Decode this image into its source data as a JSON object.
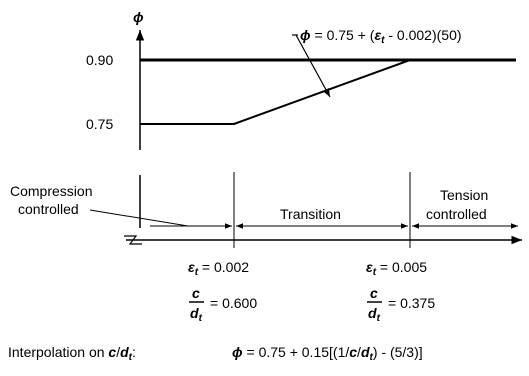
{
  "axis": {
    "phi_symbol": "ϕ"
  },
  "y_ticks": {
    "upper": "0.90",
    "lower": "0.75"
  },
  "equation": {
    "lhs": "ϕ",
    "mid": " = 0.75 + (",
    "eps": "ε",
    "sub": "t",
    "rest": " - 0.002)(50)"
  },
  "zones": {
    "compression_line1": "Compression",
    "compression_line2": "controlled",
    "transition": "Transition",
    "tension_line1": "Tension",
    "tension_line2": "controlled"
  },
  "strain_limits": {
    "left": {
      "eps": "ε",
      "sub": "t",
      "value": " = 0.002",
      "c": "c",
      "d": "d",
      "dsub": "t",
      "ratio": "= 0.600"
    },
    "right": {
      "eps": "ε",
      "sub": "t",
      "value": " = 0.005",
      "c": "c",
      "d": "d",
      "dsub": "t",
      "ratio": "= 0.375"
    }
  },
  "interpolation": {
    "label_prefix": "Interpolation on ",
    "label_c": "c",
    "label_slash": "/",
    "label_d": "d",
    "label_sub": "t",
    "label_colon": ":",
    "phi": "ϕ",
    "formula_a": " = 0.75 + 0.15[(1/",
    "formula_c": "c",
    "formula_slash": "/",
    "formula_d": "d",
    "formula_sub": "t",
    "formula_b": ") - (5/3)]"
  }
}
